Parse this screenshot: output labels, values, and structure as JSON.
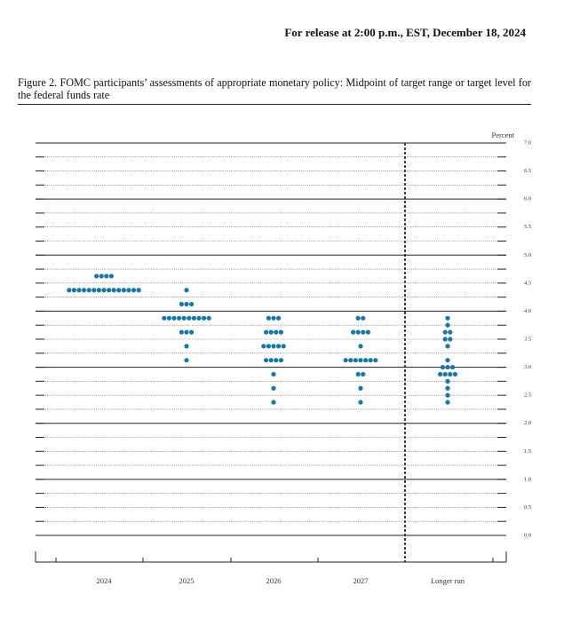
{
  "header": {
    "release": "For release at 2:00 p.m., EST, December 18, 2024"
  },
  "chart_data": {
    "type": "dot",
    "title": "Figure 2.  FOMC participants’ assessments of appropriate monetary policy: Midpoint of target range or target level for the federal funds rate",
    "y_label": "Percent",
    "categories": [
      "2024",
      "2025",
      "2026",
      "2027",
      "Longer run"
    ],
    "values": [
      [
        4.625,
        4.625,
        4.625,
        4.625,
        4.375,
        4.375,
        4.375,
        4.375,
        4.375,
        4.375,
        4.375,
        4.375,
        4.375,
        4.375,
        4.375,
        4.375,
        4.375,
        4.375,
        4.375
      ],
      [
        4.375,
        4.125,
        4.125,
        4.125,
        3.875,
        3.875,
        3.875,
        3.875,
        3.875,
        3.875,
        3.875,
        3.875,
        3.875,
        3.875,
        3.625,
        3.625,
        3.625,
        3.375,
        3.125
      ],
      [
        3.875,
        3.875,
        3.875,
        3.625,
        3.625,
        3.625,
        3.625,
        3.375,
        3.375,
        3.375,
        3.375,
        3.375,
        3.125,
        3.125,
        3.125,
        3.125,
        2.875,
        2.625,
        2.375
      ],
      [
        3.875,
        3.875,
        3.625,
        3.625,
        3.625,
        3.625,
        3.375,
        3.125,
        3.125,
        3.125,
        3.125,
        3.125,
        3.125,
        3.125,
        2.875,
        2.875,
        2.625,
        2.375
      ],
      [
        3.875,
        3.75,
        3.625,
        3.625,
        3.5,
        3.5,
        3.375,
        3.125,
        3.0,
        3.0,
        3.0,
        2.875,
        2.875,
        2.875,
        2.875,
        2.75,
        2.625,
        2.5,
        2.375
      ]
    ],
    "color": "#1877a8",
    "ylim": [
      0,
      7
    ],
    "yticks": [
      {
        "value": 0,
        "label": "0.0"
      },
      {
        "value": 0.5,
        "label": "0.5"
      },
      {
        "value": 1,
        "label": "1.0"
      },
      {
        "value": 1.5,
        "label": "1.5"
      },
      {
        "value": 2,
        "label": "2.0"
      },
      {
        "value": 2.5,
        "label": "2.5"
      },
      {
        "value": 3,
        "label": "3.0"
      },
      {
        "value": 3.5,
        "label": "3.5"
      },
      {
        "value": 4,
        "label": "4.0"
      },
      {
        "value": 4.5,
        "label": "4.5"
      },
      {
        "value": 5,
        "label": "5.0"
      },
      {
        "value": 5.5,
        "label": "5.5"
      },
      {
        "value": 6,
        "label": "6.0"
      },
      {
        "value": 6.5,
        "label": "6.5"
      },
      {
        "value": 7,
        "label": "7.0"
      }
    ],
    "minor_yticks": [
      0.25,
      0.75,
      1.25,
      1.75,
      2.25,
      2.75,
      3.25,
      3.75,
      4.25,
      4.75,
      5.25,
      5.75,
      6.25,
      6.75
    ],
    "grid": true
  }
}
